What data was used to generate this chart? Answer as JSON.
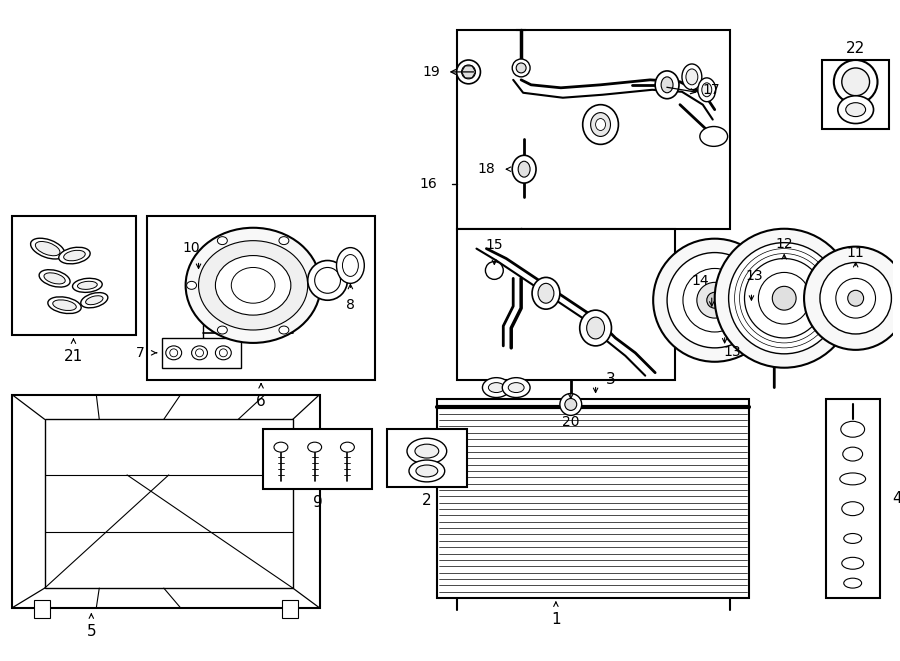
{
  "bg_color": "#ffffff",
  "line_color": "#1a1a1a",
  "fig_width": 9.0,
  "fig_height": 6.61,
  "dpi": 100,
  "label_fontsize": 10,
  "small_fontsize": 9
}
